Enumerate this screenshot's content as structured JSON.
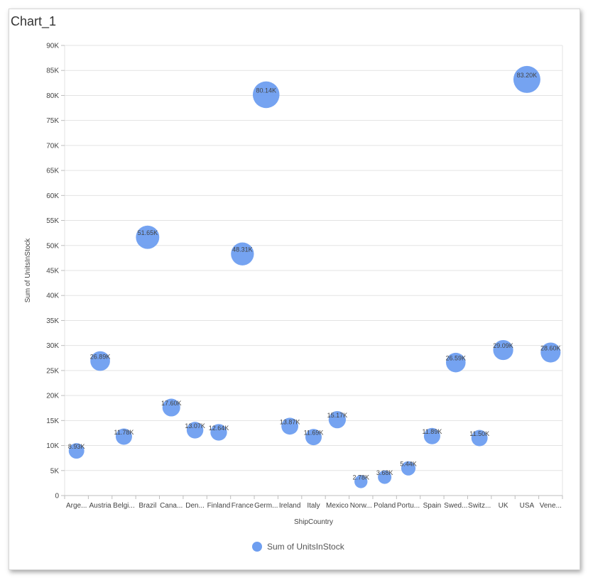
{
  "window": {
    "title": "Chart_1"
  },
  "chart_data": {
    "type": "scatter",
    "style": "bubble",
    "xlabel": "ShipCountry",
    "ylabel": "Sum of UnitsInStock",
    "ylim": [
      0,
      90000
    ],
    "ytick_labels": [
      "0",
      "5K",
      "10K",
      "15K",
      "20K",
      "25K",
      "30K",
      "35K",
      "40K",
      "45K",
      "50K",
      "55K",
      "60K",
      "65K",
      "70K",
      "75K",
      "80K",
      "85K",
      "90K"
    ],
    "grid": true,
    "legend": "bottom-center",
    "series_color": "#6e9ef0",
    "categories": [
      "Arge...",
      "Austria",
      "Belgi...",
      "Brazil",
      "Cana...",
      "Den...",
      "Finland",
      "France",
      "Germ...",
      "Ireland",
      "Italy",
      "Mexico",
      "Norw...",
      "Poland",
      "Portu...",
      "Spain",
      "Swed...",
      "Switz...",
      "UK",
      "USA",
      "Vene..."
    ],
    "series": [
      {
        "name": "Sum of UnitsInStock",
        "values": [
          8930,
          26890,
          11780,
          51650,
          17600,
          13070,
          12640,
          48310,
          80140,
          13870,
          11690,
          15170,
          2780,
          3680,
          5440,
          11890,
          26590,
          11500,
          29090,
          83200,
          28600
        ],
        "labels": [
          "8.93K",
          "26.89K",
          "11.78K",
          "51.65K",
          "17.60K",
          "13.07K",
          "12.64K",
          "48.31K",
          "80.14K",
          "13.87K",
          "11.69K",
          "15.17K",
          "2.78K",
          "3.68K",
          "5.44K",
          "11.89K",
          "26.59K",
          "11.50K",
          "29.09K",
          "83.20K",
          "28.60K"
        ]
      }
    ]
  }
}
